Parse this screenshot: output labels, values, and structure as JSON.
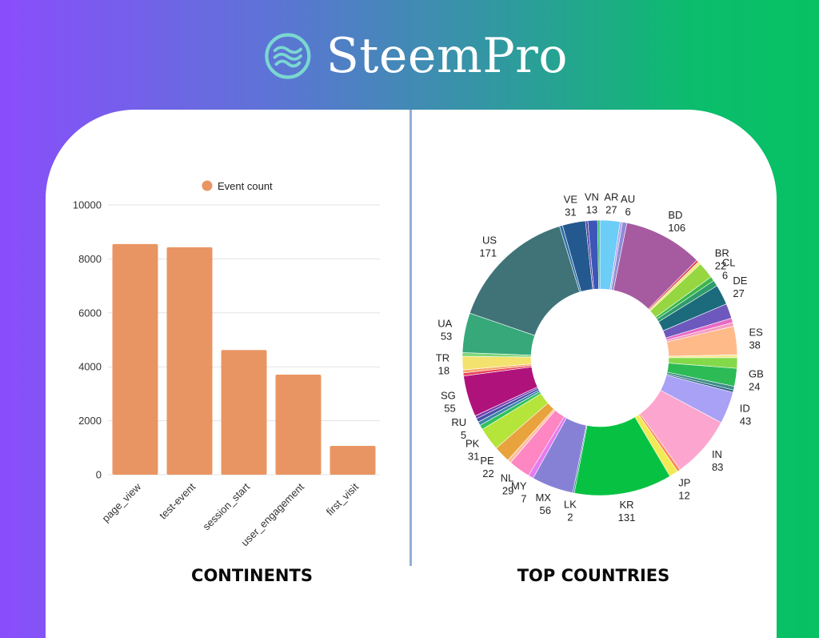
{
  "brand": {
    "name": "SteemPro",
    "icon": "steempro-waves-icon",
    "icon_color": "#7ad7d1"
  },
  "left_panel": {
    "caption": "CONTINENTS"
  },
  "right_panel": {
    "caption": "TOP COUNTRIES"
  },
  "chart_data": [
    {
      "type": "bar",
      "title": "",
      "legend": {
        "label": "Event count",
        "position": "top-center"
      },
      "categories": [
        "page_view",
        "test-event",
        "session_start",
        "user_engagement",
        "first_visit"
      ],
      "series": [
        {
          "name": "Event count",
          "values": [
            8550,
            8430,
            4620,
            3710,
            1070
          ],
          "color": "#e99563"
        }
      ],
      "ylim": [
        0,
        10000
      ],
      "yticks": [
        0,
        2000,
        4000,
        6000,
        8000,
        10000
      ],
      "grid": true
    },
    {
      "type": "pie",
      "title": "",
      "slices": [
        {
          "label": "AR",
          "value": 27,
          "color": "#6ccdf7",
          "show_label": true
        },
        {
          "label": "",
          "value": 3,
          "color": "#b3a1e8",
          "show_label": false
        },
        {
          "label": "AU",
          "value": 6,
          "color": "#8e8bd8",
          "show_label": true
        },
        {
          "label": "BD",
          "value": 106,
          "color": "#a65ba0",
          "show_label": true
        },
        {
          "label": "",
          "value": 3,
          "color": "#e0425f",
          "show_label": false
        },
        {
          "label": "",
          "value": 4,
          "color": "#f2e879",
          "show_label": false
        },
        {
          "label": "BR",
          "value": 22,
          "color": "#95d641",
          "show_label": true
        },
        {
          "label": "CL",
          "value": 6,
          "color": "#3bb84a",
          "show_label": true
        },
        {
          "label": "",
          "value": 8,
          "color": "#2d9c6a",
          "show_label": false
        },
        {
          "label": "DE",
          "value": 27,
          "color": "#1b6b7d",
          "show_label": true
        },
        {
          "label": "",
          "value": 20,
          "color": "#6d58bd",
          "show_label": false
        },
        {
          "label": "",
          "value": 6,
          "color": "#e869c6",
          "show_label": false
        },
        {
          "label": "",
          "value": 5,
          "color": "#f79cc0",
          "show_label": false
        },
        {
          "label": "ES",
          "value": 38,
          "color": "#ffba8a",
          "show_label": true
        },
        {
          "label": "",
          "value": 4,
          "color": "#f3ea8f",
          "show_label": false
        },
        {
          "label": "",
          "value": 14,
          "color": "#84d94a",
          "show_label": false
        },
        {
          "label": "GB",
          "value": 24,
          "color": "#2dbb55",
          "show_label": true
        },
        {
          "label": "",
          "value": 5,
          "color": "#3c8f88",
          "show_label": false
        },
        {
          "label": "",
          "value": 3,
          "color": "#2a5f7d",
          "show_label": false
        },
        {
          "label": "ID",
          "value": 43,
          "color": "#a8a1f5",
          "show_label": true
        },
        {
          "label": "IN",
          "value": 83,
          "color": "#fca6cf",
          "show_label": true
        },
        {
          "label": "",
          "value": 4,
          "color": "#ff8a55",
          "show_label": false
        },
        {
          "label": "JP",
          "value": 12,
          "color": "#f1ea55",
          "show_label": true
        },
        {
          "label": "KR",
          "value": 131,
          "color": "#07c242",
          "show_label": true
        },
        {
          "label": "LK",
          "value": 2,
          "color": "#2e8c83",
          "show_label": true
        },
        {
          "label": "MX",
          "value": 56,
          "color": "#8781d6",
          "show_label": true
        },
        {
          "label": "MY",
          "value": 7,
          "color": "#e67bf0",
          "show_label": true
        },
        {
          "label": "NL",
          "value": 29,
          "color": "#fd86c3",
          "show_label": true
        },
        {
          "label": "",
          "value": 5,
          "color": "#ffc0a0",
          "show_label": false
        },
        {
          "label": "PE",
          "value": 22,
          "color": "#e8a33d",
          "show_label": true
        },
        {
          "label": "PK",
          "value": 31,
          "color": "#b5e43a",
          "show_label": true
        },
        {
          "label": "",
          "value": 6,
          "color": "#30c15d",
          "show_label": false
        },
        {
          "label": "",
          "value": 5,
          "color": "#3a86a8",
          "show_label": false
        },
        {
          "label": "RU",
          "value": 5,
          "color": "#4650a8",
          "show_label": true
        },
        {
          "label": "",
          "value": 4,
          "color": "#7b3fb0",
          "show_label": false
        },
        {
          "label": "SG",
          "value": 55,
          "color": "#b0127c",
          "show_label": true
        },
        {
          "label": "",
          "value": 4,
          "color": "#e8445a",
          "show_label": false
        },
        {
          "label": "",
          "value": 4,
          "color": "#f7a46b",
          "show_label": false
        },
        {
          "label": "TR",
          "value": 18,
          "color": "#f4e26e",
          "show_label": true
        },
        {
          "label": "",
          "value": 5,
          "color": "#7fd67a",
          "show_label": false
        },
        {
          "label": "UA",
          "value": 53,
          "color": "#36a87a",
          "show_label": true
        },
        {
          "label": "US",
          "value": 171,
          "color": "#3f7378",
          "show_label": true
        },
        {
          "label": "",
          "value": 4,
          "color": "#2e6fa8",
          "show_label": false
        },
        {
          "label": "VE",
          "value": 31,
          "color": "#24598f",
          "show_label": true
        },
        {
          "label": "",
          "value": 3,
          "color": "#4f3fa0",
          "show_label": false
        },
        {
          "label": "VN",
          "value": 13,
          "color": "#3e56b8",
          "show_label": true
        },
        {
          "label": "",
          "value": 3,
          "color": "#2fb86e",
          "show_label": false
        }
      ]
    }
  ]
}
